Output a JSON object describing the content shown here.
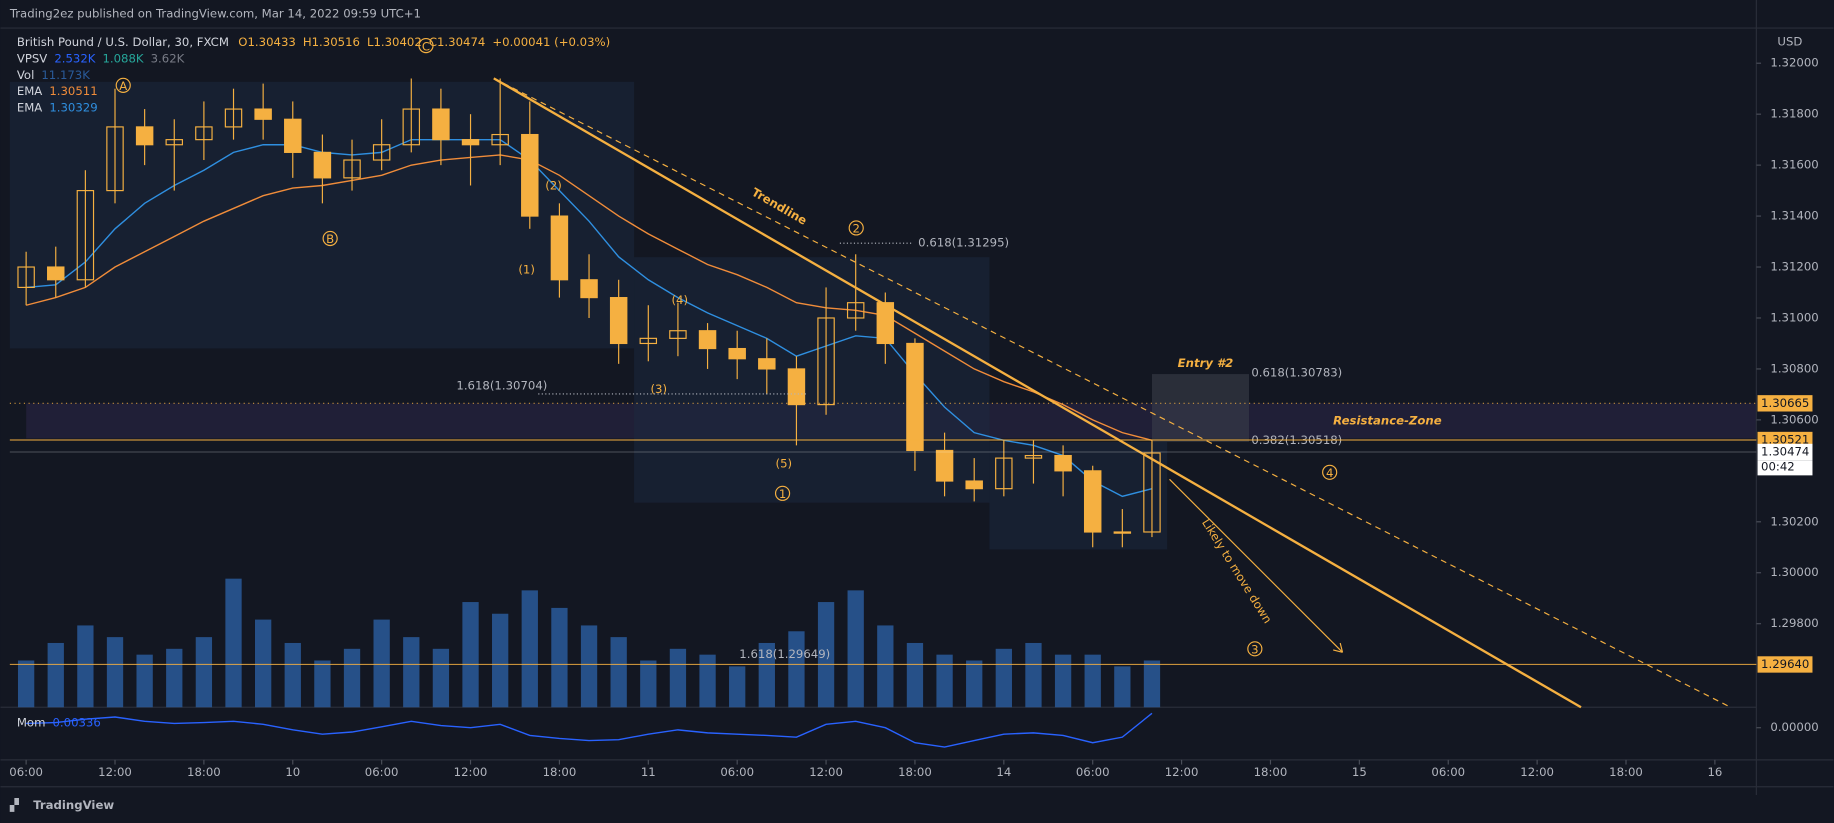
{
  "chart_data": {
    "type": "candlestick",
    "published": "Trading2ez published on TradingView.com, Mar 14, 2022 09:59 UTC+1",
    "title": "British Pound / U.S. Dollar, 30, FXCM",
    "ohlc_legend": [
      "O1.30433",
      "H1.30516",
      "L1.30402",
      "C1.30474",
      "+0.00041 (+0.03%)"
    ],
    "currency": "USD",
    "footer": "TradingView",
    "color": "#f5b041",
    "x": [
      0,
      2,
      4,
      6,
      8,
      10,
      12,
      14,
      16,
      18,
      20,
      22,
      24,
      26,
      28,
      30,
      32,
      34,
      36,
      38,
      40,
      42,
      44,
      46,
      48,
      50,
      52,
      54,
      56,
      58,
      60,
      62,
      64,
      66,
      68,
      70,
      72,
      74,
      76
    ],
    "open": [
      1.3112,
      1.312,
      1.3115,
      1.315,
      1.3175,
      1.3168,
      1.317,
      1.3175,
      1.3182,
      1.3178,
      1.3165,
      1.3155,
      1.3162,
      1.3168,
      1.3182,
      1.317,
      1.3168,
      1.3172,
      1.314,
      1.3115,
      1.3108,
      1.309,
      1.3092,
      1.3095,
      1.3088,
      1.3084,
      1.308,
      1.3066,
      1.31,
      1.3106,
      1.309,
      1.3048,
      1.3036,
      1.3033,
      1.3045,
      1.3046,
      1.304,
      1.3016,
      1.3016
    ],
    "high": [
      1.3126,
      1.3128,
      1.3158,
      1.319,
      1.3182,
      1.3178,
      1.3185,
      1.319,
      1.3192,
      1.3185,
      1.3172,
      1.317,
      1.3178,
      1.3194,
      1.319,
      1.318,
      1.3194,
      1.3185,
      1.3145,
      1.3125,
      1.3115,
      1.3105,
      1.3106,
      1.3098,
      1.3095,
      1.3092,
      1.3085,
      1.3112,
      1.3125,
      1.311,
      1.3092,
      1.3055,
      1.3045,
      1.3052,
      1.3052,
      1.305,
      1.3042,
      1.3025,
      1.3052
    ],
    "low": [
      1.3105,
      1.3108,
      1.3112,
      1.3145,
      1.316,
      1.315,
      1.3162,
      1.317,
      1.317,
      1.3155,
      1.3145,
      1.315,
      1.3158,
      1.3165,
      1.316,
      1.3152,
      1.316,
      1.3135,
      1.3108,
      1.31,
      1.3082,
      1.3083,
      1.3085,
      1.308,
      1.3076,
      1.307,
      1.305,
      1.3062,
      1.3095,
      1.3082,
      1.304,
      1.303,
      1.3028,
      1.303,
      1.3035,
      1.303,
      1.301,
      1.301,
      1.3014
    ],
    "close": [
      1.312,
      1.3115,
      1.315,
      1.3175,
      1.3168,
      1.317,
      1.3175,
      1.3182,
      1.3178,
      1.3165,
      1.3155,
      1.3162,
      1.3168,
      1.3182,
      1.317,
      1.3168,
      1.3172,
      1.314,
      1.3115,
      1.3108,
      1.309,
      1.3092,
      1.3095,
      1.3088,
      1.3084,
      1.308,
      1.3066,
      1.31,
      1.3106,
      1.309,
      1.3048,
      1.3036,
      1.3033,
      1.3045,
      1.3046,
      1.304,
      1.3016,
      1.3016,
      1.3047
    ],
    "series": [
      {
        "name": "EMA",
        "color": "#f08c3a",
        "legend_value": "1.30511",
        "values": [
          1.3105,
          1.3108,
          1.3112,
          1.312,
          1.3126,
          1.3132,
          1.3138,
          1.3143,
          1.3148,
          1.3151,
          1.3152,
          1.3154,
          1.3156,
          1.316,
          1.3162,
          1.3163,
          1.3164,
          1.3162,
          1.3156,
          1.3148,
          1.314,
          1.3133,
          1.3127,
          1.3121,
          1.3117,
          1.3112,
          1.3106,
          1.3104,
          1.3103,
          1.3101,
          1.3094,
          1.3087,
          1.308,
          1.3075,
          1.3071,
          1.3066,
          1.306,
          1.3055,
          1.3052
        ]
      },
      {
        "name": "EMA",
        "color": "#2f8fe0",
        "legend_value": "1.30329",
        "values": [
          1.3112,
          1.3113,
          1.3122,
          1.3135,
          1.3145,
          1.3152,
          1.3158,
          1.3165,
          1.3168,
          1.3168,
          1.3165,
          1.3164,
          1.3165,
          1.317,
          1.317,
          1.317,
          1.317,
          1.3162,
          1.315,
          1.3138,
          1.3124,
          1.3115,
          1.3108,
          1.3102,
          1.3097,
          1.3092,
          1.3085,
          1.3089,
          1.3093,
          1.3092,
          1.3078,
          1.3065,
          1.3055,
          1.3052,
          1.305,
          1.3046,
          1.3036,
          1.303,
          1.3033
        ]
      }
    ],
    "vpsv": {
      "name": "VPSV",
      "legend_values": [
        "2.532K",
        "1.088K",
        "3.62K"
      ],
      "colors": [
        "#2962ff",
        "#26a69a",
        "#787b86"
      ]
    },
    "volume": {
      "name": "Vol",
      "legend_value": "11.173K",
      "color": "#2a5b9a",
      "ylim": [
        0,
        12000
      ],
      "values": [
        3200,
        4400,
        5600,
        4800,
        3600,
        4000,
        4800,
        8800,
        6000,
        4400,
        3200,
        4000,
        6000,
        4800,
        4000,
        7200,
        6400,
        8000,
        6800,
        5600,
        4800,
        3200,
        4000,
        3600,
        2800,
        4400,
        5200,
        7200,
        8000,
        5600,
        4400,
        3600,
        3200,
        4000,
        4400,
        3600,
        3600,
        2800,
        3200
      ]
    },
    "momentum": {
      "name": "Mom",
      "legend_value": "0.00336",
      "color": "#2962ff",
      "ylim": [
        -0.0075,
        0.0045
      ],
      "yticks": [
        {
          "value": 0,
          "label": "0.00000"
        }
      ],
      "values": [
        0.001,
        0.0012,
        0.002,
        0.0025,
        0.0015,
        0.001,
        0.0012,
        0.0015,
        0.0008,
        -0.0005,
        -0.0015,
        -0.001,
        0.0002,
        0.0015,
        0.0005,
        0,
        0.0008,
        -0.0018,
        -0.0025,
        -0.003,
        -0.0028,
        -0.0015,
        -0.0005,
        -0.0012,
        -0.0015,
        -0.0018,
        -0.0022,
        0.0008,
        0.0015,
        0,
        -0.0035,
        -0.0045,
        -0.003,
        -0.0015,
        -0.0012,
        -0.0018,
        -0.0035,
        -0.0022,
        0.00336
      ]
    },
    "xlim": [
      -1.1,
      116.8
    ],
    "xticks": [
      {
        "value": 0,
        "label": "06:00"
      },
      {
        "value": 6,
        "label": "12:00"
      },
      {
        "value": 12,
        "label": "18:00"
      },
      {
        "value": 18,
        "label": "10"
      },
      {
        "value": 24,
        "label": "06:00"
      },
      {
        "value": 30,
        "label": "12:00"
      },
      {
        "value": 36,
        "label": "18:00"
      },
      {
        "value": 42,
        "label": "11"
      },
      {
        "value": 48,
        "label": "06:00"
      },
      {
        "value": 54,
        "label": "12:00"
      },
      {
        "value": 60,
        "label": "18:00"
      },
      {
        "value": 66,
        "label": "14"
      },
      {
        "value": 72,
        "label": "06:00"
      },
      {
        "value": 78,
        "label": "12:00"
      },
      {
        "value": 84,
        "label": "18:00"
      },
      {
        "value": 90,
        "label": "15"
      },
      {
        "value": 96,
        "label": "06:00"
      },
      {
        "value": 102,
        "label": "12:00"
      },
      {
        "value": 108,
        "label": "18:00"
      },
      {
        "value": 114,
        "label": "16"
      }
    ],
    "ylim": [
      1.29472,
      1.32138
    ],
    "yticks": [
      {
        "value": 1.32,
        "label": "1.32000"
      },
      {
        "value": 1.318,
        "label": "1.31800"
      },
      {
        "value": 1.316,
        "label": "1.31600"
      },
      {
        "value": 1.314,
        "label": "1.31400"
      },
      {
        "value": 1.312,
        "label": "1.31200"
      },
      {
        "value": 1.31,
        "label": "1.31000"
      },
      {
        "value": 1.308,
        "label": "1.30800"
      },
      {
        "value": 1.306,
        "label": "1.30600"
      },
      {
        "value": 1.302,
        "label": "1.30200"
      },
      {
        "value": 1.3,
        "label": "1.30000"
      },
      {
        "value": 1.298,
        "label": "1.29800"
      }
    ],
    "price_labels": [
      1.30665,
      1.30521,
      1.30474,
      {
        "value": 1.2964,
        "label": "1.29640"
      }
    ],
    "price_label_colors": [
      "#f5b041",
      "#f5b041",
      "#ffffff",
      "#f5b041"
    ],
    "countdown": "00:42",
    "annotations": {
      "trendline": "Trendline",
      "resistance": "Resistance-Zone",
      "entry": "Entry #2",
      "likely": "Likely to move down",
      "fibs": [
        "0.618(1.31295)",
        "1.618(1.30704)",
        "0.618(1.30783)",
        "0.382(1.30518)",
        "1.618(1.29649)"
      ],
      "waves": [
        "(1)",
        "(2)",
        "(3)",
        "(4)",
        "(5)"
      ],
      "circled": [
        "A",
        "B",
        "C",
        "1",
        "2",
        "3",
        "4"
      ]
    }
  }
}
